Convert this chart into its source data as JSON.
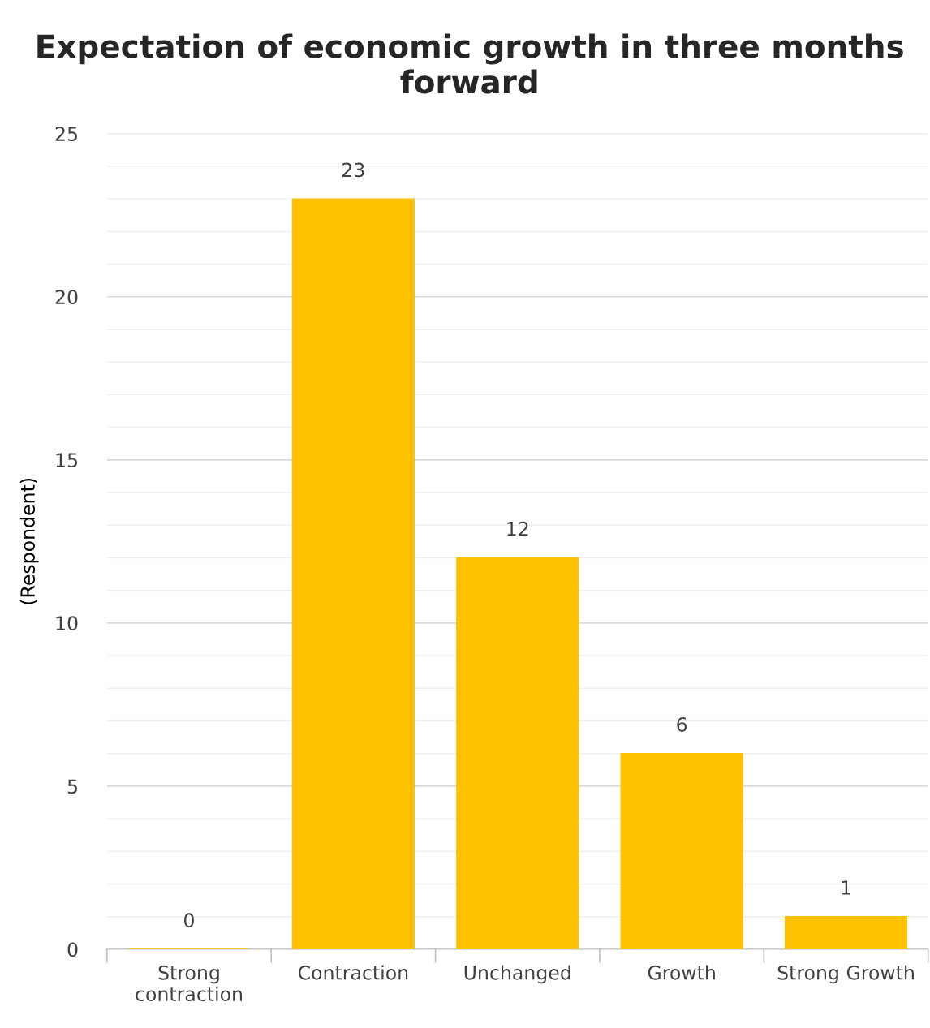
{
  "chart_data": {
    "type": "bar",
    "title": "Expectation of economic growth in three months forward",
    "ylabel": "(Respondent)",
    "categories": [
      "Strong contraction",
      "Contraction",
      "Unchanged",
      "Growth",
      "Strong Growth"
    ],
    "values": [
      0,
      23,
      12,
      6,
      1
    ],
    "color": "#ffc000",
    "data_labels": true,
    "ylim": [
      0,
      25
    ],
    "yticks": [
      0,
      {
        "value": 1,
        "label": null
      },
      {
        "value": 2,
        "label": null
      },
      {
        "value": 3,
        "label": null
      },
      {
        "value": 4,
        "label": null
      },
      5,
      {
        "value": 6,
        "label": null
      },
      {
        "value": 7,
        "label": null
      },
      {
        "value": 8,
        "label": null
      },
      {
        "value": 9,
        "label": null
      },
      10,
      {
        "value": 11,
        "label": null
      },
      {
        "value": 12,
        "label": null
      },
      {
        "value": 13,
        "label": null
      },
      {
        "value": 14,
        "label": null
      },
      15,
      {
        "value": 16,
        "label": null
      },
      {
        "value": 17,
        "label": null
      },
      {
        "value": 18,
        "label": null
      },
      {
        "value": 19,
        "label": null
      },
      20,
      {
        "value": 21,
        "label": null
      },
      {
        "value": 22,
        "label": null
      },
      {
        "value": 23,
        "label": null
      },
      {
        "value": 24,
        "label": null
      },
      25
    ],
    "grid": "y",
    "legend": false
  }
}
